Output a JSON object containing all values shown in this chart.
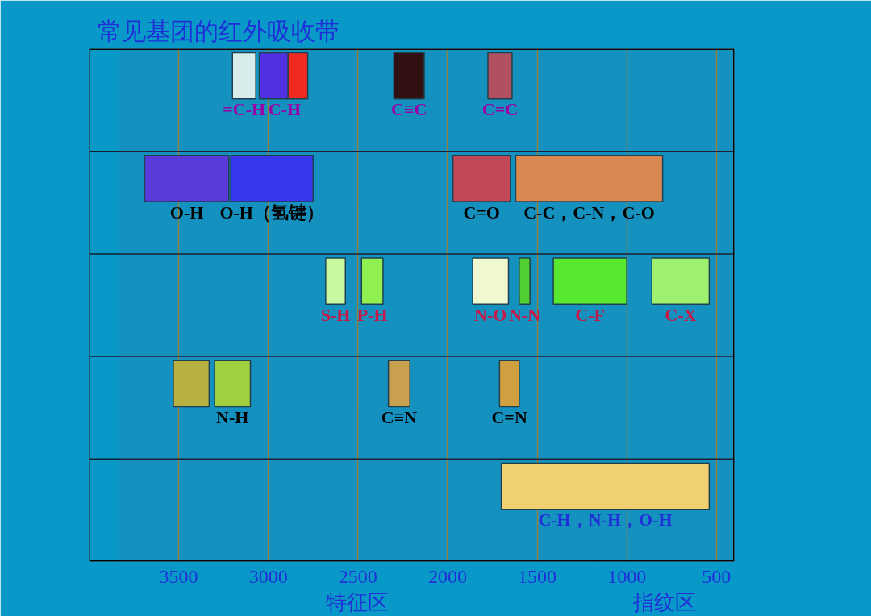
{
  "chart_data": {
    "type": "bar",
    "orientation": "horizontal",
    "title": "常见基团的红外吸收带",
    "categories": [
      null,
      null,
      null,
      null,
      null
    ],
    "xlim": [
      4000,
      400
    ],
    "xticks": [
      3500,
      3000,
      2500,
      2000,
      1500,
      1000,
      500
    ],
    "grid": "x",
    "series": [
      {
        "name": "=C-H",
        "color": "#d8ecec",
        "values": [
          130,
          null,
          null,
          null,
          null
        ],
        "base": [
          3070,
          null,
          null,
          null,
          null
        ]
      },
      {
        "name": "C-H",
        "color": "#5030e0",
        "values": [
          160,
          null,
          null,
          null,
          null
        ],
        "base": [
          2890,
          null,
          null,
          null,
          null
        ]
      },
      {
        "color": "#f02a20",
        "values": [
          110,
          null,
          null,
          null,
          null
        ],
        "base": [
          2780,
          null,
          null,
          null,
          null
        ]
      },
      {
        "name": "C≡C",
        "color": "#301010",
        "values": [
          170,
          null,
          null,
          null,
          null
        ],
        "base": [
          2130,
          null,
          null,
          null,
          null
        ]
      },
      {
        "name": "C=C",
        "color": "#b05060",
        "values": [
          135,
          null,
          null,
          null,
          null
        ],
        "base": [
          1640,
          null,
          null,
          null,
          null
        ]
      },
      {
        "name": "O-H",
        "color": "#5a3ad8",
        "values": [
          null,
          470,
          null,
          null,
          null
        ],
        "base": [
          null,
          3220,
          null,
          null,
          null
        ]
      },
      {
        "name": "O-H（氢键）",
        "color": "#3838f0",
        "values": [
          null,
          460,
          null,
          null,
          null
        ],
        "base": [
          null,
          2750,
          null,
          null,
          null
        ]
      },
      {
        "name": "C=O",
        "color": "#c04858",
        "values": [
          null,
          320,
          null,
          null,
          null
        ],
        "base": [
          null,
          1650,
          null,
          null,
          null
        ]
      },
      {
        "name": "C-C，C-N，C-O",
        "color": "#d88850",
        "values": [
          null,
          820,
          null,
          null,
          null
        ],
        "base": [
          null,
          800,
          null,
          null,
          null
        ]
      },
      {
        "name": "S-H",
        "color": "#c8f8a0",
        "values": [
          null,
          null,
          110,
          null,
          null
        ],
        "base": [
          null,
          null,
          2570,
          null,
          null
        ]
      },
      {
        "name": "P-H",
        "color": "#90f050",
        "values": [
          null,
          null,
          120,
          null,
          null
        ],
        "base": [
          null,
          null,
          2360,
          null,
          null
        ]
      },
      {
        "name": "N-O",
        "color": "#f0f8d0",
        "values": [
          null,
          null,
          200,
          null,
          null
        ],
        "base": [
          null,
          null,
          1660,
          null,
          null
        ]
      },
      {
        "name": "N-N",
        "color": "#50d030",
        "values": [
          null,
          null,
          60,
          null,
          null
        ],
        "base": [
          null,
          null,
          1540,
          null,
          null
        ]
      },
      {
        "name": "C-F",
        "color": "#58e830",
        "values": [
          null,
          null,
          410,
          null,
          null
        ],
        "base": [
          null,
          null,
          1000,
          null,
          null
        ]
      },
      {
        "name": "C-X",
        "color": "#a0f070",
        "values": [
          null,
          null,
          320,
          null,
          null
        ],
        "base": [
          null,
          null,
          540,
          null,
          null
        ]
      },
      {
        "color": "#b8b040",
        "values": [
          null,
          null,
          null,
          200,
          null
        ],
        "base": [
          null,
          null,
          null,
          3330,
          null
        ]
      },
      {
        "name": "N-H",
        "color": "#a0d040",
        "values": [
          null,
          null,
          null,
          200,
          null
        ],
        "base": [
          null,
          null,
          null,
          3100,
          null
        ]
      },
      {
        "name": "C≡N",
        "color": "#c8a050",
        "values": [
          null,
          null,
          null,
          120,
          null
        ],
        "base": [
          null,
          null,
          null,
          2210,
          null
        ]
      },
      {
        "name": "C=N",
        "color": "#d0a040",
        "values": [
          null,
          null,
          null,
          110,
          null
        ],
        "base": [
          null,
          null,
          null,
          1600,
          null
        ]
      },
      {
        "name": "C-H，N-H，O-H",
        "color": "#f0d070",
        "values": [
          null,
          null,
          null,
          null,
          1160
        ],
        "base": [
          null,
          null,
          null,
          null,
          540
        ]
      }
    ],
    "bands": [
      {
        "axis": "x",
        "from": 3830,
        "to": 1180,
        "label": "特征区",
        "color": "#c83050"
      },
      {
        "axis": "x",
        "from": 1180,
        "to": 400,
        "label": "指纹区",
        "color": "#c83050"
      }
    ]
  }
}
